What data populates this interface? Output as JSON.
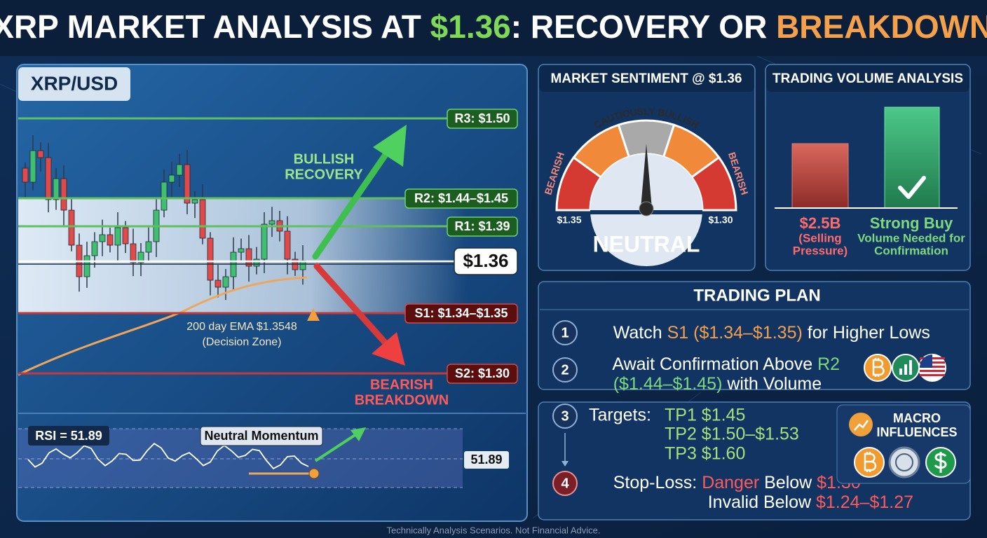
{
  "title": {
    "parts": [
      "XRP MARKET ANALYSIS AT ",
      "$1.36",
      ": RECOVERY OR ",
      "BREAKDOWN?"
    ]
  },
  "chart": {
    "pair": "XRP/USD",
    "r3": "R3: $1.50",
    "r2": "R2: $1.44–$1.45",
    "r1": "R1: $1.39",
    "current": "$1.36",
    "s1": "S1: $1.34–$1.35",
    "s2": "S2: $1.30",
    "bullish": [
      "BULLISH",
      "RECOVERY"
    ],
    "bearish": [
      "BEARISH",
      "BREAKDOWN"
    ],
    "ema": [
      "200 day EMA $1.3548",
      "(Decision Zone)"
    ],
    "rsi_label": "RSI = 51.89",
    "momentum": "Neutral Momentum",
    "rsi_value": "51.89"
  },
  "sentiment": {
    "title": "MARKET SENTIMENT @ $1.36",
    "top": "CAUTIOUSLY BULLISH",
    "left": "BEARISH",
    "right": "BEARISH",
    "low": "$1.35",
    "high": "$1.30",
    "reading": "NEUTRAL"
  },
  "volume": {
    "title": "TRADING VOLUME ANALYSIS",
    "sell": [
      "$2.5B",
      "(Selling",
      "Pressure)"
    ],
    "buy": [
      "Strong Buy",
      "Volume Needed for",
      "Confirmation"
    ]
  },
  "plan": {
    "title": "TRADING PLAN",
    "steps": [
      {
        "num": "1",
        "lines": [
          [
            "Watch ",
            "S1 ($1.34–$1.35)",
            " for Higher Lows"
          ]
        ]
      },
      {
        "num": "2",
        "lines": [
          [
            "Await Confirmation Above ",
            "R2"
          ],
          [
            "($1.44–$1.45)",
            " with Volume"
          ]
        ]
      },
      {
        "num": "3",
        "label": "Targets:",
        "lines": [
          [
            "TP1 $1.45"
          ],
          [
            "TP2 $1.50–$1.53"
          ],
          [
            "TP3 $1.60"
          ]
        ]
      },
      {
        "num": "4",
        "lines": [
          [
            "Stop-Loss: ",
            "Danger",
            " Below ",
            "$1.30"
          ],
          [
            "Invalid Below ",
            "$1.24–$1.27"
          ]
        ]
      }
    ]
  },
  "macro": {
    "title": [
      "MACRO",
      "INFLUENCES"
    ]
  },
  "footer": "Technically Analysis Scenarios. Not Financial Advice."
}
